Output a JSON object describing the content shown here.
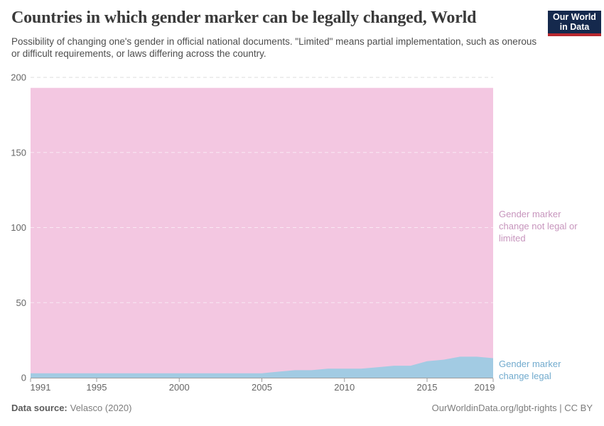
{
  "header": {
    "logo_line1": "Our World",
    "logo_line2": "in Data"
  },
  "chart_data": {
    "type": "area",
    "stacked": true,
    "title": "Countries in which gender marker can be legally changed, World",
    "subtitle": "Possibility of changing one's gender in official national documents. \"Limited\" means partial implementation, such as onerous or difficult requirements, or laws differing across the country.",
    "x": [
      1991,
      1992,
      1993,
      1994,
      1995,
      1996,
      1997,
      1998,
      1999,
      2000,
      2001,
      2002,
      2003,
      2004,
      2005,
      2006,
      2007,
      2008,
      2009,
      2010,
      2011,
      2012,
      2013,
      2014,
      2015,
      2016,
      2017,
      2018,
      2019
    ],
    "series": [
      {
        "name": "Gender marker change legal",
        "color": "#a2cbe3",
        "label_color": "#72abce",
        "values": [
          3,
          3,
          3,
          3,
          3,
          3,
          3,
          3,
          3,
          3,
          3,
          3,
          3,
          3,
          3,
          4,
          5,
          5,
          6,
          6,
          6,
          7,
          8,
          8,
          11,
          12,
          14,
          14,
          13
        ]
      },
      {
        "name": "Gender marker change not legal or limited",
        "color": "#f3c7e1",
        "label_color": "#c795bd",
        "values": [
          190,
          190,
          190,
          190,
          190,
          190,
          190,
          190,
          190,
          190,
          190,
          190,
          190,
          190,
          190,
          189,
          188,
          188,
          187,
          187,
          187,
          186,
          185,
          185,
          182,
          181,
          179,
          179,
          180
        ]
      }
    ],
    "total_countries": 193,
    "xlabel": "",
    "ylabel": "",
    "ylim": [
      0,
      200
    ],
    "y_ticks": [
      0,
      50,
      100,
      150,
      200
    ],
    "x_ticks": [
      1991,
      1995,
      2000,
      2005,
      2010,
      2015,
      2019
    ],
    "grid": true,
    "legend_position": "right-edge-labels"
  },
  "legend": {
    "not_legal_lines": [
      "Gender marker",
      "change not legal or",
      "limited"
    ],
    "legal_lines": [
      "Gender marker",
      "change legal"
    ]
  },
  "footer": {
    "source_label": "Data source:",
    "source_value": "Velasco (2020)",
    "credit": "OurWorldinData.org/lgbt-rights | CC BY"
  }
}
